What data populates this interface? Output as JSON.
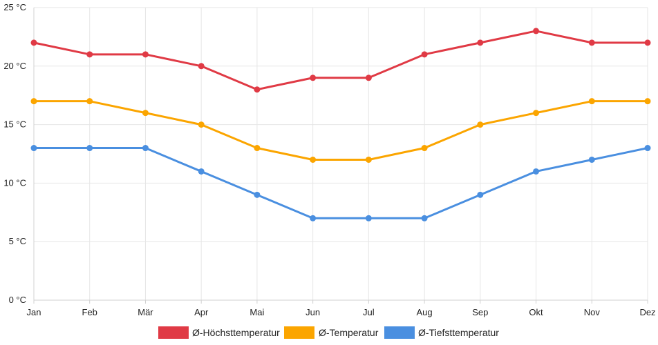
{
  "chart_data": {
    "type": "line",
    "categories": [
      "Jan",
      "Feb",
      "Mär",
      "Apr",
      "Mai",
      "Jun",
      "Jul",
      "Aug",
      "Sep",
      "Okt",
      "Nov",
      "Dez"
    ],
    "y_tick_labels": [
      "0 °C",
      "5 °C",
      "10 °C",
      "15 °C",
      "20 °C",
      "25 °C"
    ],
    "y_ticks": [
      0,
      5,
      10,
      15,
      20,
      25
    ],
    "ylim": [
      0,
      25
    ],
    "grid": true,
    "legend_position": "bottom",
    "series": [
      {
        "name": "Ø-Höchsttemperatur",
        "color": "#e03a45",
        "values": [
          22,
          21,
          21,
          20,
          18,
          19,
          19,
          21,
          22,
          23,
          22,
          22
        ]
      },
      {
        "name": "Ø-Temperatur",
        "color": "#fba500",
        "values": [
          17,
          17,
          16,
          15,
          13,
          12,
          12,
          13,
          15,
          16,
          17,
          17
        ]
      },
      {
        "name": "Ø-Tiefsttemperatur",
        "color": "#4a8fe0",
        "values": [
          13,
          13,
          13,
          11,
          9,
          7,
          7,
          7,
          9,
          11,
          12,
          13
        ]
      }
    ]
  }
}
